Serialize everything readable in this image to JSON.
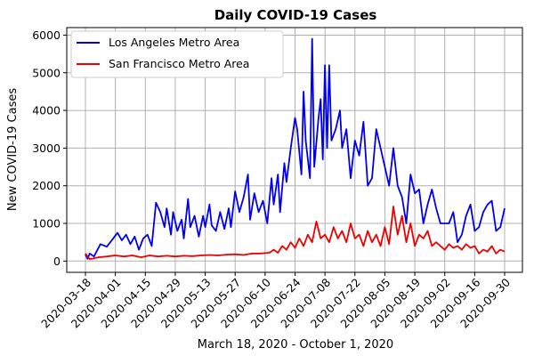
{
  "chart_data": {
    "type": "line",
    "title": "Daily COVID-19 Cases",
    "xlabel": "March 18, 2020 - October 1, 2020",
    "ylabel": "New COVID-19 Cases",
    "x_start": "2020-03-18",
    "x_ticks": [
      "2020-03-18",
      "2020-04-01",
      "2020-04-15",
      "2020-04-29",
      "2020-05-13",
      "2020-05-27",
      "2020-06-10",
      "2020-06-24",
      "2020-07-08",
      "2020-07-22",
      "2020-08-05",
      "2020-08-19",
      "2020-09-02",
      "2020-09-16",
      "2020-09-30"
    ],
    "y_ticks": [
      0,
      1000,
      2000,
      3000,
      4000,
      5000,
      6000
    ],
    "ylim": [
      -300,
      6200
    ],
    "grid": true,
    "legend_position": "top-left",
    "series": [
      {
        "name": "Los Angeles Metro Area",
        "color": "#0000ee",
        "points": [
          [
            "2020-03-18",
            180
          ],
          [
            "2020-03-19",
            60
          ],
          [
            "2020-03-20",
            200
          ],
          [
            "2020-03-22",
            120
          ],
          [
            "2020-03-25",
            450
          ],
          [
            "2020-03-28",
            380
          ],
          [
            "2020-03-31",
            600
          ],
          [
            "2020-04-02",
            750
          ],
          [
            "2020-04-04",
            550
          ],
          [
            "2020-04-06",
            700
          ],
          [
            "2020-04-08",
            450
          ],
          [
            "2020-04-10",
            650
          ],
          [
            "2020-04-12",
            300
          ],
          [
            "2020-04-14",
            600
          ],
          [
            "2020-04-16",
            700
          ],
          [
            "2020-04-18",
            400
          ],
          [
            "2020-04-20",
            1550
          ],
          [
            "2020-04-22",
            1300
          ],
          [
            "2020-04-24",
            900
          ],
          [
            "2020-04-25",
            1400
          ],
          [
            "2020-04-27",
            700
          ],
          [
            "2020-04-28",
            1300
          ],
          [
            "2020-04-30",
            800
          ],
          [
            "2020-05-02",
            1100
          ],
          [
            "2020-05-03",
            600
          ],
          [
            "2020-05-05",
            1650
          ],
          [
            "2020-05-06",
            900
          ],
          [
            "2020-05-08",
            1200
          ],
          [
            "2020-05-10",
            650
          ],
          [
            "2020-05-12",
            1200
          ],
          [
            "2020-05-13",
            900
          ],
          [
            "2020-05-15",
            1500
          ],
          [
            "2020-05-16",
            950
          ],
          [
            "2020-05-18",
            800
          ],
          [
            "2020-05-20",
            1300
          ],
          [
            "2020-05-22",
            850
          ],
          [
            "2020-05-24",
            1400
          ],
          [
            "2020-05-25",
            900
          ],
          [
            "2020-05-27",
            1850
          ],
          [
            "2020-05-29",
            1300
          ],
          [
            "2020-05-31",
            1700
          ],
          [
            "2020-06-02",
            2300
          ],
          [
            "2020-06-03",
            1100
          ],
          [
            "2020-06-05",
            1800
          ],
          [
            "2020-06-07",
            1300
          ],
          [
            "2020-06-09",
            1600
          ],
          [
            "2020-06-11",
            1000
          ],
          [
            "2020-06-13",
            2200
          ],
          [
            "2020-06-14",
            1500
          ],
          [
            "2020-06-16",
            2300
          ],
          [
            "2020-06-17",
            1300
          ],
          [
            "2020-06-19",
            2600
          ],
          [
            "2020-06-20",
            2100
          ],
          [
            "2020-06-22",
            3000
          ],
          [
            "2020-06-24",
            3800
          ],
          [
            "2020-06-25",
            3500
          ],
          [
            "2020-06-27",
            2300
          ],
          [
            "2020-06-28",
            4500
          ],
          [
            "2020-06-29",
            3200
          ],
          [
            "2020-07-01",
            2200
          ],
          [
            "2020-07-02",
            5900
          ],
          [
            "2020-07-03",
            2500
          ],
          [
            "2020-07-05",
            3800
          ],
          [
            "2020-07-06",
            4300
          ],
          [
            "2020-07-07",
            2700
          ],
          [
            "2020-07-08",
            5200
          ],
          [
            "2020-07-09",
            3000
          ],
          [
            "2020-07-10",
            5200
          ],
          [
            "2020-07-11",
            3200
          ],
          [
            "2020-07-13",
            3500
          ],
          [
            "2020-07-15",
            4000
          ],
          [
            "2020-07-16",
            3000
          ],
          [
            "2020-07-18",
            3500
          ],
          [
            "2020-07-20",
            2200
          ],
          [
            "2020-07-22",
            3200
          ],
          [
            "2020-07-24",
            2800
          ],
          [
            "2020-07-26",
            3700
          ],
          [
            "2020-07-28",
            2000
          ],
          [
            "2020-07-30",
            2200
          ],
          [
            "2020-08-01",
            3500
          ],
          [
            "2020-08-03",
            3000
          ],
          [
            "2020-08-05",
            2500
          ],
          [
            "2020-08-07",
            2000
          ],
          [
            "2020-08-09",
            3000
          ],
          [
            "2020-08-11",
            2000
          ],
          [
            "2020-08-13",
            1700
          ],
          [
            "2020-08-15",
            1000
          ],
          [
            "2020-08-17",
            2300
          ],
          [
            "2020-08-19",
            1800
          ],
          [
            "2020-08-21",
            1900
          ],
          [
            "2020-08-23",
            1000
          ],
          [
            "2020-08-25",
            1500
          ],
          [
            "2020-08-27",
            1900
          ],
          [
            "2020-08-29",
            1400
          ],
          [
            "2020-08-31",
            1000
          ],
          [
            "2020-09-02",
            1000
          ],
          [
            "2020-09-04",
            1000
          ],
          [
            "2020-09-06",
            1300
          ],
          [
            "2020-09-08",
            500
          ],
          [
            "2020-09-10",
            700
          ],
          [
            "2020-09-12",
            1200
          ],
          [
            "2020-09-14",
            1500
          ],
          [
            "2020-09-16",
            800
          ],
          [
            "2020-09-18",
            900
          ],
          [
            "2020-09-20",
            1300
          ],
          [
            "2020-09-22",
            1500
          ],
          [
            "2020-09-24",
            1600
          ],
          [
            "2020-09-26",
            800
          ],
          [
            "2020-09-28",
            900
          ],
          [
            "2020-09-30",
            1400
          ]
        ]
      },
      {
        "name": "San Francisco Metro Area",
        "color": "#ee0000",
        "points": [
          [
            "2020-03-18",
            200
          ],
          [
            "2020-03-20",
            50
          ],
          [
            "2020-03-24",
            100
          ],
          [
            "2020-03-28",
            120
          ],
          [
            "2020-04-01",
            150
          ],
          [
            "2020-04-05",
            120
          ],
          [
            "2020-04-09",
            150
          ],
          [
            "2020-04-13",
            100
          ],
          [
            "2020-04-17",
            150
          ],
          [
            "2020-04-21",
            120
          ],
          [
            "2020-04-25",
            140
          ],
          [
            "2020-04-29",
            120
          ],
          [
            "2020-05-03",
            140
          ],
          [
            "2020-05-07",
            130
          ],
          [
            "2020-05-11",
            150
          ],
          [
            "2020-05-15",
            160
          ],
          [
            "2020-05-19",
            150
          ],
          [
            "2020-05-23",
            170
          ],
          [
            "2020-05-27",
            180
          ],
          [
            "2020-05-31",
            160
          ],
          [
            "2020-06-04",
            200
          ],
          [
            "2020-06-08",
            200
          ],
          [
            "2020-06-12",
            220
          ],
          [
            "2020-06-14",
            300
          ],
          [
            "2020-06-16",
            220
          ],
          [
            "2020-06-18",
            400
          ],
          [
            "2020-06-20",
            300
          ],
          [
            "2020-06-22",
            500
          ],
          [
            "2020-06-24",
            350
          ],
          [
            "2020-06-26",
            600
          ],
          [
            "2020-06-28",
            400
          ],
          [
            "2020-06-30",
            700
          ],
          [
            "2020-07-02",
            500
          ],
          [
            "2020-07-04",
            1050
          ],
          [
            "2020-07-06",
            600
          ],
          [
            "2020-07-08",
            700
          ],
          [
            "2020-07-10",
            500
          ],
          [
            "2020-07-12",
            900
          ],
          [
            "2020-07-14",
            600
          ],
          [
            "2020-07-16",
            800
          ],
          [
            "2020-07-18",
            500
          ],
          [
            "2020-07-20",
            1000
          ],
          [
            "2020-07-22",
            600
          ],
          [
            "2020-07-24",
            700
          ],
          [
            "2020-07-26",
            400
          ],
          [
            "2020-07-28",
            800
          ],
          [
            "2020-07-30",
            500
          ],
          [
            "2020-08-01",
            700
          ],
          [
            "2020-08-03",
            400
          ],
          [
            "2020-08-05",
            900
          ],
          [
            "2020-08-07",
            450
          ],
          [
            "2020-08-09",
            1450
          ],
          [
            "2020-08-11",
            700
          ],
          [
            "2020-08-13",
            1200
          ],
          [
            "2020-08-15",
            500
          ],
          [
            "2020-08-17",
            1000
          ],
          [
            "2020-08-19",
            400
          ],
          [
            "2020-08-21",
            700
          ],
          [
            "2020-08-23",
            600
          ],
          [
            "2020-08-25",
            800
          ],
          [
            "2020-08-27",
            400
          ],
          [
            "2020-08-29",
            500
          ],
          [
            "2020-08-31",
            400
          ],
          [
            "2020-09-02",
            300
          ],
          [
            "2020-09-04",
            450
          ],
          [
            "2020-09-06",
            350
          ],
          [
            "2020-09-08",
            400
          ],
          [
            "2020-09-10",
            300
          ],
          [
            "2020-09-12",
            450
          ],
          [
            "2020-09-14",
            350
          ],
          [
            "2020-09-16",
            400
          ],
          [
            "2020-09-18",
            200
          ],
          [
            "2020-09-20",
            300
          ],
          [
            "2020-09-22",
            250
          ],
          [
            "2020-09-24",
            400
          ],
          [
            "2020-09-26",
            200
          ],
          [
            "2020-09-28",
            300
          ],
          [
            "2020-09-30",
            250
          ]
        ]
      }
    ]
  }
}
